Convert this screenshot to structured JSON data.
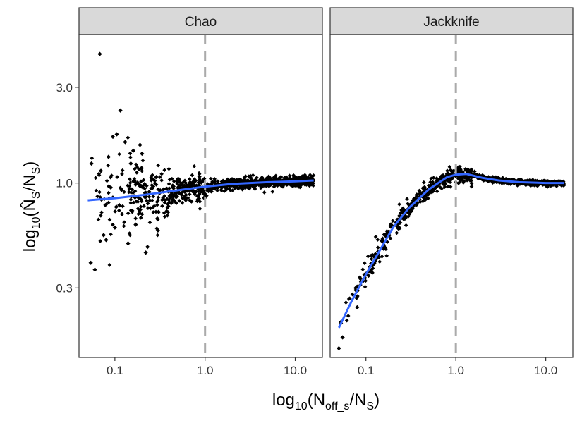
{
  "chart_data": {
    "type": "scatter",
    "x_axis": {
      "label_base": "log",
      "label_base_sub": "10",
      "label_num": "N",
      "label_num_sub": "off_s",
      "label_den": "N",
      "label_den_sub": "S",
      "scale": "log",
      "range": [
        0.04,
        20
      ],
      "ticks": [
        0.1,
        1.0,
        10.0
      ],
      "tick_labels": [
        "0.1",
        "1.0",
        "10.0"
      ]
    },
    "y_axis": {
      "label_base": "log",
      "label_base_sub": "10",
      "label_num": "N̂",
      "label_num_sub": "S",
      "label_den": "N",
      "label_den_sub": "S",
      "scale": "log",
      "range": [
        0.135,
        5.5
      ],
      "ticks": [
        0.3,
        1.0,
        3.0
      ],
      "tick_labels": [
        "0.3",
        "1.0",
        "3.0"
      ]
    },
    "reference_line_x": 1.0,
    "grid": false,
    "colors": {
      "points": "#000000",
      "smooth": "#3366ff",
      "reference": "#aaaaaa",
      "strip_bg": "#d9d9d9",
      "panel_border": "#333333"
    },
    "panels": [
      {
        "name": "Chao",
        "smooth": [
          {
            "x": 0.05,
            "y": 0.82
          },
          {
            "x": 0.1,
            "y": 0.84
          },
          {
            "x": 0.2,
            "y": 0.87
          },
          {
            "x": 0.5,
            "y": 0.92
          },
          {
            "x": 1.0,
            "y": 0.96
          },
          {
            "x": 2.0,
            "y": 0.99
          },
          {
            "x": 5.0,
            "y": 1.01
          },
          {
            "x": 10.0,
            "y": 1.02
          },
          {
            "x": 16.0,
            "y": 1.03
          }
        ],
        "outliers": [
          {
            "x": 0.068,
            "y": 4.4
          },
          {
            "x": 0.115,
            "y": 2.3
          },
          {
            "x": 0.095,
            "y": 1.7
          },
          {
            "x": 0.105,
            "y": 1.75
          },
          {
            "x": 0.13,
            "y": 1.6
          },
          {
            "x": 0.16,
            "y": 1.45
          },
          {
            "x": 0.19,
            "y": 1.55
          },
          {
            "x": 0.2,
            "y": 1.4
          },
          {
            "x": 0.085,
            "y": 1.35
          },
          {
            "x": 0.055,
            "y": 1.25
          },
          {
            "x": 0.07,
            "y": 1.15
          },
          {
            "x": 0.075,
            "y": 0.55
          },
          {
            "x": 0.08,
            "y": 0.52
          },
          {
            "x": 0.054,
            "y": 0.4
          },
          {
            "x": 0.06,
            "y": 0.37
          },
          {
            "x": 0.1,
            "y": 0.6
          },
          {
            "x": 0.14,
            "y": 0.5
          },
          {
            "x": 0.23,
            "y": 0.48
          },
          {
            "x": 0.22,
            "y": 0.45
          },
          {
            "x": 0.17,
            "y": 0.62
          },
          {
            "x": 0.3,
            "y": 0.58
          },
          {
            "x": 0.12,
            "y": 0.7
          },
          {
            "x": 0.09,
            "y": 0.95
          },
          {
            "x": 0.15,
            "y": 1.25
          }
        ]
      },
      {
        "name": "Jackknife",
        "smooth": [
          {
            "x": 0.05,
            "y": 0.19
          },
          {
            "x": 0.07,
            "y": 0.26
          },
          {
            "x": 0.1,
            "y": 0.35
          },
          {
            "x": 0.15,
            "y": 0.48
          },
          {
            "x": 0.2,
            "y": 0.6
          },
          {
            "x": 0.3,
            "y": 0.75
          },
          {
            "x": 0.5,
            "y": 0.93
          },
          {
            "x": 0.8,
            "y": 1.07
          },
          {
            "x": 1.0,
            "y": 1.1
          },
          {
            "x": 1.3,
            "y": 1.11
          },
          {
            "x": 2.0,
            "y": 1.06
          },
          {
            "x": 3.0,
            "y": 1.03
          },
          {
            "x": 5.0,
            "y": 1.01
          },
          {
            "x": 10.0,
            "y": 1.0
          },
          {
            "x": 16.0,
            "y": 1.0
          }
        ],
        "outliers": [
          {
            "x": 0.05,
            "y": 0.15
          },
          {
            "x": 0.055,
            "y": 0.17
          },
          {
            "x": 0.08,
            "y": 0.24
          }
        ]
      }
    ]
  }
}
